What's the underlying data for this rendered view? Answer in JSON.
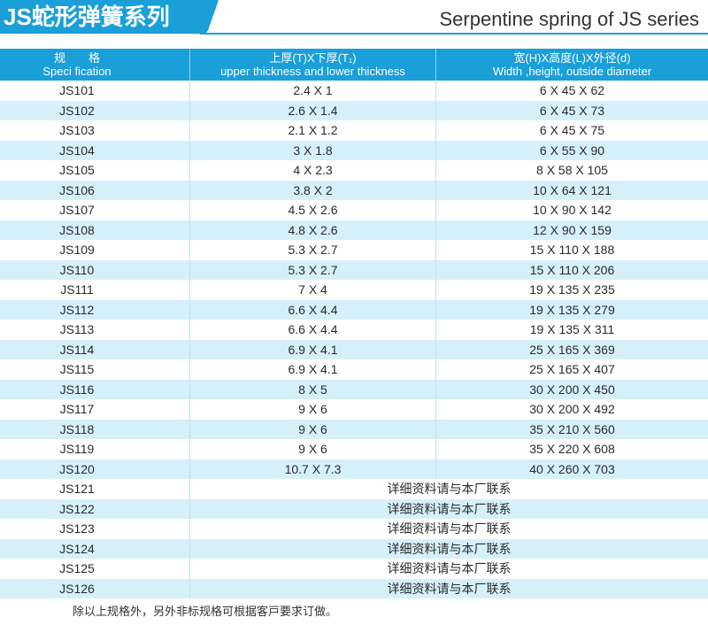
{
  "header": {
    "title_cn": "JS蛇形弹簧系列",
    "title_en": "Serpentine spring of JS series",
    "banner_color": "#1a9fd8"
  },
  "table": {
    "columns": [
      {
        "cn": "规　　格",
        "en": "Speci fication"
      },
      {
        "cn": "上厚(T)X下厚(T₁)",
        "en": "upper thickness and lower thickness"
      },
      {
        "cn": "宽(H)X高度(L)X外径(d)",
        "en": "Width ,height, outside diameter"
      }
    ],
    "rows": [
      {
        "spec": "JS101",
        "thickness": "2.4 X 1",
        "dims": "6 X 45 X 62"
      },
      {
        "spec": "JS102",
        "thickness": "2.6 X 1.4",
        "dims": "6 X 45 X 73"
      },
      {
        "spec": "JS103",
        "thickness": "2.1 X 1.2",
        "dims": "6 X 45 X 75"
      },
      {
        "spec": "JS104",
        "thickness": "3 X 1.8",
        "dims": "6 X 55 X 90"
      },
      {
        "spec": "JS105",
        "thickness": "4 X 2.3",
        "dims": "8 X 58 X 105"
      },
      {
        "spec": "JS106",
        "thickness": "3.8 X 2",
        "dims": "10 X 64 X 121"
      },
      {
        "spec": "JS107",
        "thickness": "4.5 X 2.6",
        "dims": "10 X 90 X 142"
      },
      {
        "spec": "JS108",
        "thickness": "4.8 X 2.6",
        "dims": "12 X 90 X 159"
      },
      {
        "spec": "JS109",
        "thickness": "5.3 X 2.7",
        "dims": "15 X 110 X 188"
      },
      {
        "spec": "JS110",
        "thickness": "5.3 X 2.7",
        "dims": "15 X 110 X 206"
      },
      {
        "spec": "JS111",
        "thickness": "7 X 4",
        "dims": "19 X 135 X 235"
      },
      {
        "spec": "JS112",
        "thickness": "6.6 X 4.4",
        "dims": "19 X 135 X 279"
      },
      {
        "spec": "JS113",
        "thickness": "6.6 X 4.4",
        "dims": "19 X 135 X 311"
      },
      {
        "spec": "JS114",
        "thickness": "6.9 X 4.1",
        "dims": "25 X 165 X 369"
      },
      {
        "spec": "JS115",
        "thickness": "6.9 X 4.1",
        "dims": "25 X 165 X 407"
      },
      {
        "spec": "JS116",
        "thickness": "8 X 5",
        "dims": "30 X 200 X 450"
      },
      {
        "spec": "JS117",
        "thickness": "9 X 6",
        "dims": "30 X 200 X 492"
      },
      {
        "spec": "JS118",
        "thickness": "9 X 6",
        "dims": "35 X 210 X 560"
      },
      {
        "spec": "JS119",
        "thickness": "9 X 6",
        "dims": "35 X 220 X 608"
      },
      {
        "spec": "JS120",
        "thickness": "10.7 X 7.3",
        "dims": "40 X 260 X 703"
      },
      {
        "spec": "JS121",
        "contact": "详细资料请与本厂联系"
      },
      {
        "spec": "JS122",
        "contact": "详细资料请与本厂联系"
      },
      {
        "spec": "JS123",
        "contact": "详细资料请与本厂联系"
      },
      {
        "spec": "JS124",
        "contact": "详细资料请与本厂联系"
      },
      {
        "spec": "JS125",
        "contact": "详细资料请与本厂联系"
      },
      {
        "spec": "JS126",
        "contact": "详细资料请与本厂联系"
      }
    ]
  },
  "footnote": "除以上规格外，另外非标规格可根据客戸要求订做。"
}
